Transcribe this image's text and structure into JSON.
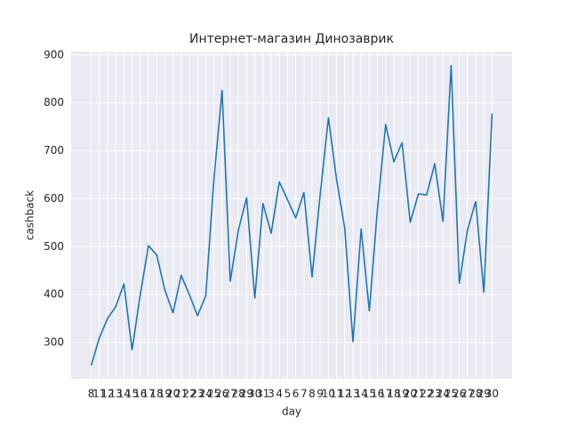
{
  "chart_data": {
    "type": "line",
    "title": "Интернет-магазин Динозаврик",
    "xlabel": "day",
    "ylabel": "cashback",
    "categories": [
      8,
      11,
      12,
      13,
      14,
      15,
      16,
      17,
      18,
      19,
      20,
      21,
      22,
      23,
      24,
      25,
      26,
      27,
      28,
      29,
      30,
      31,
      3,
      4,
      5,
      6,
      7,
      8,
      9,
      10,
      11,
      12,
      13,
      14,
      15,
      16,
      17,
      18,
      19,
      20,
      21,
      22,
      23,
      24,
      25,
      26,
      27,
      28,
      29,
      30
    ],
    "series": [
      {
        "name": "cashback",
        "color": "#1f77b4",
        "values": [
          252,
          310,
          350,
          375,
          422,
          285,
          400,
          502,
          483,
          410,
          362,
          440,
          400,
          356,
          397,
          640,
          826,
          428,
          535,
          602,
          393,
          590,
          528,
          635,
          598,
          560,
          613,
          437,
          610,
          769,
          640,
          538,
          302,
          537,
          366,
          580,
          755,
          677,
          717,
          551,
          610,
          608,
          673,
          553,
          878,
          424,
          535,
          594,
          405,
          778
        ]
      }
    ],
    "ylim": [
      224,
      907
    ],
    "yticks": [
      300,
      400,
      500,
      600,
      700,
      800,
      900
    ],
    "grid": true
  }
}
